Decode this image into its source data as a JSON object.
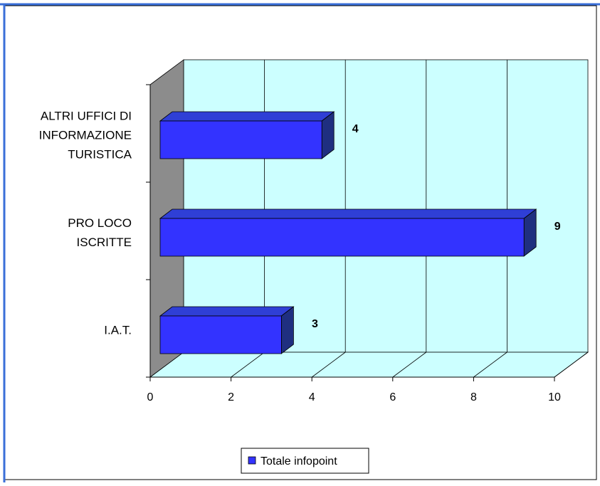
{
  "chart_data": {
    "type": "bar",
    "orientation": "horizontal",
    "style": "3d",
    "categories": [
      [
        "ALTRI UFFICI DI",
        "INFORMAZIONE",
        "TURISTICA"
      ],
      [
        "PRO LOCO",
        "ISCRITTE"
      ],
      [
        "I.A.T."
      ]
    ],
    "series": [
      {
        "name": "Totale infopoint",
        "values": [
          4,
          9,
          3
        ]
      }
    ],
    "data_labels": [
      "4",
      "9",
      "3"
    ],
    "xlim": [
      0,
      10
    ],
    "xticks": [
      "0",
      "2",
      "4",
      "6",
      "8",
      "10"
    ],
    "grid": true,
    "legend_position": "bottom",
    "colors": {
      "bar_front": "#3333ff",
      "bar_top": "#2f3fd6",
      "bar_side": "#1f2f80",
      "wall": "#ccffff",
      "wall_side": "#8c8c8c",
      "border_accent": "#3a6fd8"
    }
  }
}
